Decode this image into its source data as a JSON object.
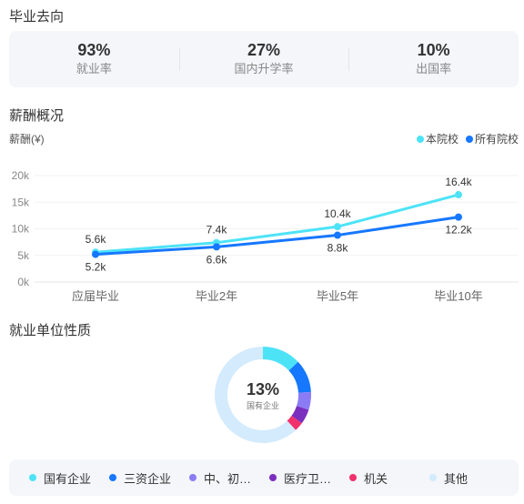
{
  "graduation_title": "毕业去向",
  "stats": [
    {
      "value": "93%",
      "label": "就业率"
    },
    {
      "value": "27%",
      "label": "国内升学率"
    },
    {
      "value": "10%",
      "label": "出国率"
    }
  ],
  "salary_title": "薪酬概况",
  "salary_unit": "薪酬(¥)",
  "chart_data": {
    "type": "line",
    "categories": [
      "应届毕业",
      "毕业2年",
      "毕业5年",
      "毕业10年"
    ],
    "series": [
      {
        "name": "本院校",
        "values": [
          5.6,
          7.4,
          10.4,
          16.4
        ],
        "labels": [
          "5.6k",
          "7.4k",
          "10.4k",
          "16.4k"
        ],
        "color": "#4de3f7"
      },
      {
        "name": "所有院校",
        "values": [
          5.2,
          6.6,
          8.8,
          12.2
        ],
        "labels": [
          "5.2k",
          "6.6k",
          "8.8k",
          "12.2k"
        ],
        "color": "#1677ff"
      }
    ],
    "yticks": [
      "0k",
      "5k",
      "10k",
      "15k",
      "20k"
    ],
    "ylim": [
      0,
      20
    ],
    "grid": true,
    "legend": "top-right"
  },
  "employer_title": "就业单位性质",
  "donut": {
    "center_value": "13%",
    "center_label": "国有企业",
    "segments": [
      {
        "name": "国有企业",
        "value": 13,
        "color": "#4de3f7"
      },
      {
        "name": "三资企业",
        "value": 11,
        "color": "#1677ff"
      },
      {
        "name": "中、初…",
        "value": 6,
        "color": "#8b7cf6"
      },
      {
        "name": "医疗卫…",
        "value": 5,
        "color": "#7b2fbe"
      },
      {
        "name": "机关",
        "value": 3,
        "color": "#f0316b"
      },
      {
        "name": "其他",
        "value": 62,
        "color": "#d3ebfd"
      }
    ]
  }
}
